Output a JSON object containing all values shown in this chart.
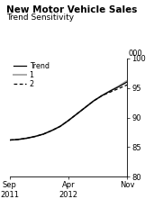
{
  "title": "New Motor Vehicle Sales",
  "subtitle": "Trend Sensitivity",
  "ylabel": "000",
  "ylim": [
    80,
    100
  ],
  "yticks": [
    80,
    85,
    90,
    95,
    100
  ],
  "legend_entries": [
    "Trend",
    "1",
    "2"
  ],
  "background_color": "#ffffff",
  "trend_color": "#000000",
  "line1_color": "#aaaaaa",
  "line2_color": "#000000",
  "x_data": [
    0,
    1,
    2,
    3,
    4,
    5,
    6,
    7,
    8,
    9,
    10,
    11,
    12,
    13,
    14
  ],
  "trend_y": [
    86.2,
    86.3,
    86.5,
    86.8,
    87.2,
    87.8,
    88.5,
    89.5,
    90.6,
    91.7,
    92.8,
    93.7,
    94.5,
    95.2,
    96.0
  ],
  "line1_y": [
    86.2,
    86.3,
    86.5,
    86.8,
    87.2,
    87.8,
    88.5,
    89.5,
    90.6,
    91.7,
    92.8,
    93.7,
    94.5,
    95.3,
    96.2
  ],
  "line2_y": [
    86.2,
    86.3,
    86.5,
    86.8,
    87.2,
    87.8,
    88.5,
    89.5,
    90.6,
    91.7,
    92.8,
    93.7,
    94.3,
    94.9,
    95.5
  ],
  "title_fontsize": 7.5,
  "subtitle_fontsize": 6.5,
  "tick_fontsize": 6,
  "legend_fontsize": 5.8
}
